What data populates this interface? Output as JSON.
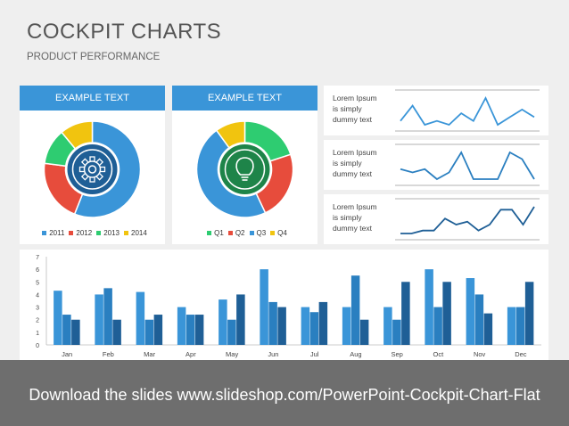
{
  "header": {
    "title": "COCKPIT CHARTS",
    "subtitle": "PRODUCT PERFORMANCE"
  },
  "donut1": {
    "title": "EXAMPLE TEXT",
    "icon": "gear-icon",
    "slices": [
      {
        "label": "2011",
        "value": 56,
        "color": "#3a95d8"
      },
      {
        "label": "2012",
        "value": 21,
        "color": "#e74c3c"
      },
      {
        "label": "2013",
        "value": 12,
        "color": "#2ecc71"
      },
      {
        "label": "2014",
        "value": 11,
        "color": "#f1c40f"
      }
    ]
  },
  "donut2": {
    "title": "EXAMPLE TEXT",
    "icon": "lightbulb-icon",
    "slices": [
      {
        "label": "Q1",
        "value": 20,
        "color": "#2ecc71"
      },
      {
        "label": "Q2",
        "value": 23,
        "color": "#e74c3c"
      },
      {
        "label": "Q3",
        "value": 47,
        "color": "#3a95d8"
      },
      {
        "label": "Q4",
        "value": 10,
        "color": "#f1c40f"
      }
    ]
  },
  "sparklines": [
    {
      "lines": [
        "Lorem Ipsum",
        "is simply",
        "dummy text"
      ],
      "color": "#3a95d8",
      "values": [
        3,
        5,
        2.5,
        3,
        2.5,
        4,
        3,
        6,
        2.5,
        3.5,
        4.5,
        3.5
      ]
    },
    {
      "lines": [
        "Lorem Ipsum",
        "is simply",
        "dummy text"
      ],
      "color": "#2a7fc0",
      "values": [
        3.5,
        3,
        3.5,
        2,
        3,
        6,
        2,
        2,
        2,
        6,
        5,
        2
      ]
    },
    {
      "lines": [
        "Lorem Ipsum",
        "is simply",
        "dummy text"
      ],
      "color": "#1f5f96",
      "values": [
        1,
        1,
        1.5,
        1.5,
        3.5,
        2.5,
        3,
        1.5,
        2.5,
        5,
        5,
        2.5,
        5.5
      ]
    }
  ],
  "chart_data": {
    "type": "bar",
    "categories": [
      "Jan",
      "Feb",
      "Mar",
      "Apr",
      "May",
      "Jun",
      "Jul",
      "Aug",
      "Sep",
      "Oct",
      "Nov",
      "Dec"
    ],
    "series": [
      {
        "values": [
          4.3,
          4.0,
          4.2,
          3.0,
          3.6,
          6.0,
          3.0,
          3.0,
          3.0,
          6.0,
          5.3,
          3.0
        ],
        "color": "#3a95d8"
      },
      {
        "values": [
          2.4,
          4.5,
          2.0,
          2.4,
          2.0,
          3.4,
          2.6,
          5.5,
          2.0,
          3.0,
          4.0,
          3.0
        ],
        "color": "#2a7fc0"
      },
      {
        "values": [
          2.0,
          2.0,
          2.4,
          2.4,
          4.0,
          3.0,
          3.4,
          2.0,
          5.0,
          5.0,
          2.5,
          5.0
        ],
        "color": "#1f5f96"
      }
    ],
    "yticks": [
      "0",
      "1",
      "2",
      "3",
      "4",
      "5",
      "6",
      "7"
    ],
    "ylim": [
      0,
      7
    ]
  },
  "banner": {
    "text": "Download the slides www.slideshop.com/PowerPoint-Cockpit-Chart-Flat"
  }
}
